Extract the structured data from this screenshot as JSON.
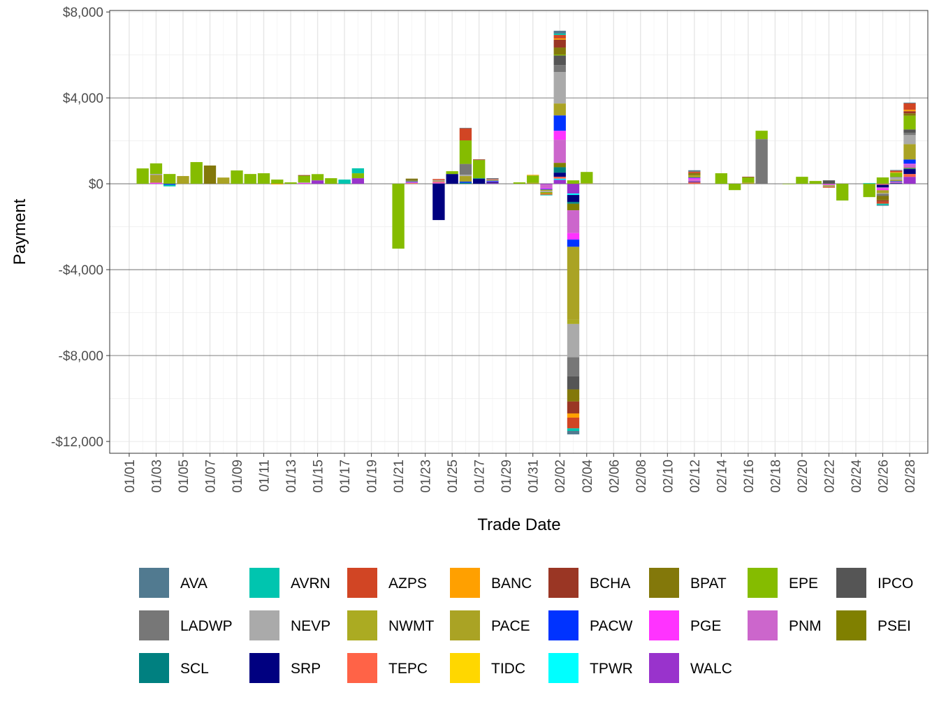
{
  "chart_data": {
    "type": "bar",
    "stacked": true,
    "xlabel": "Trade Date",
    "ylabel": "Payment",
    "ylim": [
      -12550,
      8070
    ],
    "yticks": [
      8000,
      4000,
      0,
      -4000,
      -8000,
      -12000
    ],
    "ytick_labels": [
      "$8,000",
      "$4,000",
      "$0",
      "-$4,000",
      "-$8,000",
      "-$12,000"
    ],
    "xtick_labels": [
      "01/01",
      "01/03",
      "01/05",
      "01/07",
      "01/09",
      "01/11",
      "01/13",
      "01/15",
      "01/17",
      "01/19",
      "01/21",
      "01/23",
      "01/25",
      "01/27",
      "01/29",
      "01/31",
      "02/02",
      "02/04",
      "02/06",
      "02/08",
      "02/10",
      "02/12",
      "02/14",
      "02/16",
      "02/18",
      "02/20",
      "02/22",
      "02/24",
      "02/26",
      "02/28"
    ],
    "grid": true,
    "legend_position": "bottom",
    "series": [
      {
        "name": "AVA",
        "color": "#517A90"
      },
      {
        "name": "AVRN",
        "color": "#00C5AF"
      },
      {
        "name": "AZPS",
        "color": "#D14524"
      },
      {
        "name": "BANC",
        "color": "#FFA000"
      },
      {
        "name": "BCHA",
        "color": "#9A3624"
      },
      {
        "name": "BPAT",
        "color": "#83780A"
      },
      {
        "name": "EPE",
        "color": "#85BC00"
      },
      {
        "name": "IPCO",
        "color": "#555555"
      },
      {
        "name": "LADWP",
        "color": "#777777"
      },
      {
        "name": "NEVP",
        "color": "#AAAAAA"
      },
      {
        "name": "NWMT",
        "color": "#ABAB22"
      },
      {
        "name": "PACE",
        "color": "#AAA324"
      },
      {
        "name": "PACW",
        "color": "#0033FF"
      },
      {
        "name": "PGE",
        "color": "#FF33FF"
      },
      {
        "name": "PNM",
        "color": "#CC66CC"
      },
      {
        "name": "PSEI",
        "color": "#808000"
      },
      {
        "name": "SCL",
        "color": "#008080"
      },
      {
        "name": "SRP",
        "color": "#000080"
      },
      {
        "name": "TEPC",
        "color": "#FF6347"
      },
      {
        "name": "TIDC",
        "color": "#FFD700"
      },
      {
        "name": "TPWR",
        "color": "#00FFFF"
      },
      {
        "name": "WALC",
        "color": "#9933CC"
      }
    ],
    "bars": [
      {
        "date": "01/02",
        "values": {
          "EPE": 715
        }
      },
      {
        "date": "01/03",
        "values": {
          "EPE": 490,
          "NEVP": 50,
          "PACE": 360,
          "PGE": 50
        }
      },
      {
        "date": "01/04",
        "values": {
          "EPE": 455,
          "PACW": -50,
          "AVRN": -70
        }
      },
      {
        "date": "01/05",
        "values": {
          "PACE": 360
        }
      },
      {
        "date": "01/06",
        "values": {
          "EPE": 1010
        }
      },
      {
        "date": "01/07",
        "values": {
          "BPAT": 850
        }
      },
      {
        "date": "01/08",
        "values": {
          "PACE": 290
        }
      },
      {
        "date": "01/09",
        "values": {
          "EPE": 620
        }
      },
      {
        "date": "01/10",
        "values": {
          "EPE": 455
        }
      },
      {
        "date": "01/11",
        "values": {
          "EPE": 490
        }
      },
      {
        "date": "01/12",
        "values": {
          "EPE": 195,
          "BANC": -30
        }
      },
      {
        "date": "01/13",
        "values": {
          "EPE": 65
        }
      },
      {
        "date": "01/14",
        "values": {
          "BCHA": 30,
          "EPE": 310,
          "NEVP": 30,
          "PGE": 35
        }
      },
      {
        "date": "01/15",
        "values": {
          "EPE": 290,
          "WALC": 160
        }
      },
      {
        "date": "01/16",
        "values": {
          "EPE": 260
        }
      },
      {
        "date": "01/17",
        "values": {
          "AVRN": 195
        }
      },
      {
        "date": "01/18",
        "values": {
          "AVRN": 230,
          "EPE": 230,
          "WALC": 260
        }
      },
      {
        "date": "01/21",
        "values": {
          "EPE": -3020
        }
      },
      {
        "date": "01/22",
        "values": {
          "BPAT": 60,
          "IPCO": 30,
          "NWMT": 40,
          "PACW": 30,
          "PNM": 30,
          "PGE": 20,
          "TEPC": 30
        }
      },
      {
        "date": "01/24",
        "values": {
          "AZPS": 50,
          "NEVP": 40,
          "PACE": 40,
          "PGE": 30,
          "TEPC": 30,
          "WALC": 30,
          "SRP": -1690
        }
      },
      {
        "date": "01/25",
        "values": {
          "EPE": 130,
          "SRP": 455
        }
      },
      {
        "date": "01/26",
        "values": {
          "AVA": 20,
          "AZPS": 565,
          "EPE": 1095,
          "IPCO": 20,
          "LADWP": 480,
          "NEVP": 65,
          "PACE": 260,
          "PACW": 50,
          "SCL": 50
        }
      },
      {
        "date": "01/27",
        "values": {
          "BCHA": 30,
          "EPE": 845,
          "SCL": 30,
          "SRP": 230
        }
      },
      {
        "date": "01/28",
        "values": {
          "AVA": 30,
          "AZPS": 30,
          "NEVP": 30,
          "PACE": 30,
          "PACW": 40,
          "PNM": 30,
          "SRP": 40,
          "WALC": 30
        }
      },
      {
        "date": "01/30",
        "values": {
          "EPE": 65
        }
      },
      {
        "date": "01/31",
        "values": {
          "BANC": 30,
          "EPE": 335,
          "PACE": 50
        }
      },
      {
        "date": "02/01",
        "values": {
          "WALC": -30,
          "PNM": -170,
          "PGE": -40,
          "PACW": -30,
          "PACE": -60,
          "NEVP": -60,
          "EPE": -30,
          "BPAT": -30,
          "BANC": -30,
          "AZPS": -30,
          "AVRN": -30
        }
      },
      {
        "date": "02/02",
        "values": {
          "AVA": 130,
          "AVRN": 65,
          "AZPS": 160,
          "BANC": 55,
          "BCHA": 370,
          "BPAT": 325,
          "EPE": 45,
          "IPCO": 445,
          "LADWP": 325,
          "NEVP": 1465,
          "PACE": 555,
          "PACW": 715,
          "PGE": 420,
          "PNM": 1075,
          "PSEI": 205,
          "SCL": 250,
          "SRP": 195,
          "TEPC": 85,
          "TPWR": 55,
          "WALC": 185
        }
      },
      {
        "date": "02/03",
        "values": {
          "EPE": 160,
          "WALC": -455,
          "TPWR": -65,
          "SRP": -325,
          "SCL": -85,
          "PSEI": -305,
          "PNM": -1060,
          "PGE": -305,
          "PACW": -335,
          "PACE": -3400,
          "NWMT": -195,
          "NEVP": -1550,
          "LADWP": -890,
          "IPCO": -605,
          "BPAT": -565,
          "BCHA": -555,
          "BANC": -195,
          "AZPS": -500,
          "AVRN": -120,
          "AVA": -160
        }
      },
      {
        "date": "02/04",
        "values": {
          "EPE": 520,
          "PACE": 30
        }
      },
      {
        "date": "02/12",
        "values": {
          "AVA": 65,
          "AZPS": 65,
          "BPAT": 100,
          "PACE": 110,
          "PACW": 30,
          "PGE": 65,
          "PNM": 100,
          "SRP": 30,
          "TEPC": 65
        }
      },
      {
        "date": "02/14",
        "values": {
          "EPE": 490
        }
      },
      {
        "date": "02/15",
        "values": {
          "EPE": -295
        }
      },
      {
        "date": "02/16",
        "values": {
          "BCHA": 25,
          "EPE": 240,
          "PACE": 65
        }
      },
      {
        "date": "02/17",
        "values": {
          "EPE": 390,
          "LADWP": 2080
        }
      },
      {
        "date": "02/19",
        "values": {
          "EPE": -20
        }
      },
      {
        "date": "02/20",
        "values": {
          "EPE": 325
        }
      },
      {
        "date": "02/21",
        "values": {
          "EPE": 130
        }
      },
      {
        "date": "02/22",
        "values": {
          "IPCO": 160,
          "PNM": -40,
          "PGE": -20,
          "NEVP": -30,
          "PACE": -30,
          "EPE": -20,
          "AZPS": -40
        }
      },
      {
        "date": "02/23",
        "values": {
          "EPE": -780
        }
      },
      {
        "date": "02/25",
        "values": {
          "AVRN": 30,
          "EPE": -620
        }
      },
      {
        "date": "02/26",
        "values": {
          "EPE": 295,
          "WALC": -20,
          "TEPC": -30,
          "SRP": -120,
          "PNM": -45,
          "PGE": -85,
          "PACE": -140,
          "NEVP": -30,
          "LADWP": -95,
          "BPAT": -205,
          "BCHA": -65,
          "AZPS": -95,
          "AVRN": -65,
          "AVA": -30
        }
      },
      {
        "date": "02/27",
        "values": {
          "AVA": 30,
          "AZPS": 65,
          "BANC": 30,
          "EPE": 195,
          "LADWP": 30,
          "NEVP": 100,
          "PACE": 65,
          "PNM": 65,
          "PACW": 30,
          "SRP": 30
        }
      },
      {
        "date": "02/28",
        "values": {
          "AVA": 30,
          "AZPS": 305,
          "BANC": 65,
          "BCHA": 100,
          "BPAT": 110,
          "EPE": 640,
          "IPCO": 160,
          "LADWP": 100,
          "NEVP": 425,
          "PACE": 715,
          "PACW": 195,
          "PGE": 30,
          "PNM": 160,
          "PSEI": 30,
          "SCL": 30,
          "SRP": 230,
          "TEPC": 130,
          "WALC": 325
        }
      }
    ]
  }
}
